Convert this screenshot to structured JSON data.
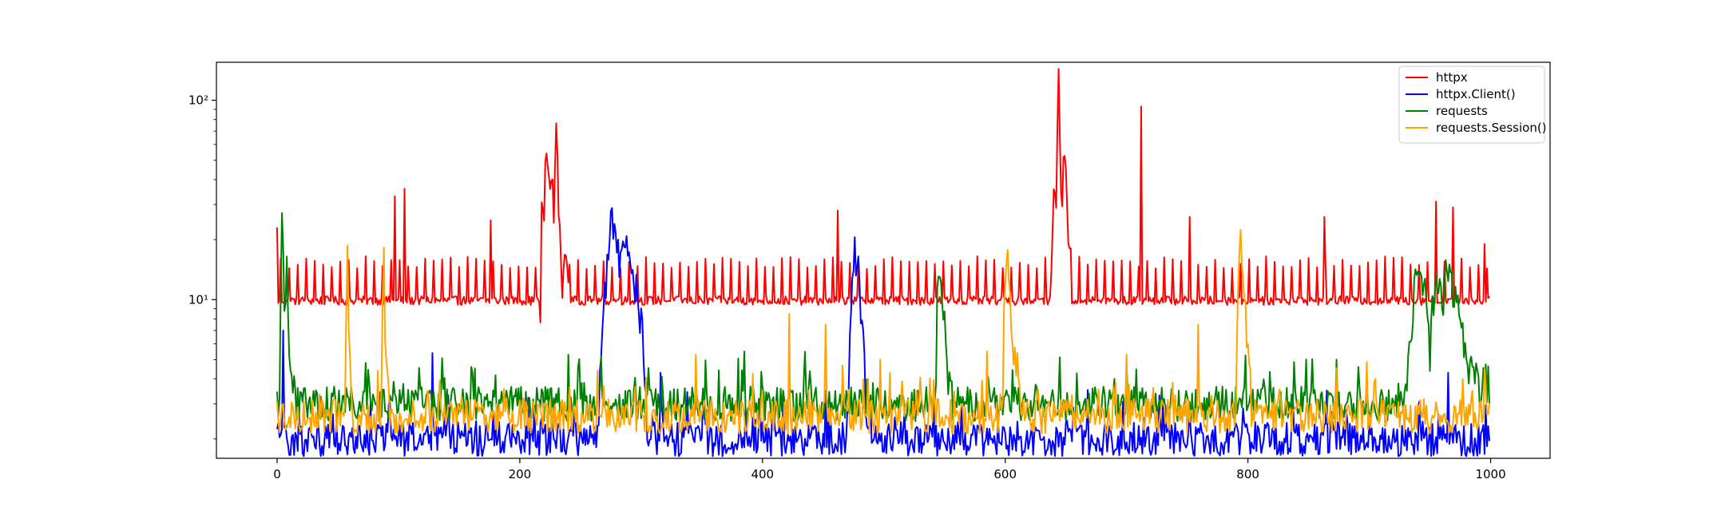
{
  "chart_data": {
    "type": "line",
    "title": "",
    "xlabel": "",
    "ylabel": "",
    "x_range": [
      0,
      999
    ],
    "xlim": [
      -50,
      1049
    ],
    "ylim": [
      1.6,
      155
    ],
    "y_scale": "log",
    "grid": false,
    "legend_position": "top-right",
    "x_ticks": [
      0,
      200,
      400,
      600,
      800,
      1000
    ],
    "x_tick_labels": [
      "0",
      "200",
      "400",
      "600",
      "800",
      "1000"
    ],
    "y_ticks": [
      10,
      100
    ],
    "y_tick_labels": [
      "10¹",
      "10²"
    ],
    "series": [
      {
        "name": "httpx",
        "color": "#ff0000",
        "baseline": 9.9,
        "spike_every": 7,
        "spike_height": 15,
        "bursts": [
          {
            "x": [
              217,
              218,
              220,
              222,
              224,
              226,
              228,
              230,
              232,
              234,
              236,
              238,
              240
            ],
            "y": [
              10,
              40,
              25,
              60,
              35,
              50,
              26,
              70,
              30,
              14,
              13,
              18,
              11
            ]
          },
          {
            "x": [
              638,
              640,
              642,
              644,
              646,
              648,
              650,
              652,
              654
            ],
            "y": [
              18,
              33,
              30,
              120,
              30,
              47,
              40,
              22,
              18
            ]
          }
        ],
        "peaks": [
          {
            "x": 0,
            "y": 23
          },
          {
            "x": 97,
            "y": 33
          },
          {
            "x": 105,
            "y": 36
          },
          {
            "x": 176,
            "y": 25
          },
          {
            "x": 462,
            "y": 28
          },
          {
            "x": 712,
            "y": 93
          },
          {
            "x": 752,
            "y": 26
          },
          {
            "x": 863,
            "y": 26
          },
          {
            "x": 955,
            "y": 31
          },
          {
            "x": 969,
            "y": 29
          },
          {
            "x": 995,
            "y": 19
          }
        ]
      },
      {
        "name": "httpx.Client()",
        "color": "#0000ff",
        "baseline": 2.0,
        "bursts": [
          {
            "x": [
              265,
              268,
              272,
              276,
              280,
              284,
              288,
              292,
              296,
              300,
              304
            ],
            "y": [
              3,
              6,
              14,
              29,
              18,
              16,
              17,
              13,
              12,
              8,
              3
            ]
          },
          {
            "x": [
              470,
              473,
              476,
              479,
              482,
              485
            ],
            "y": [
              3,
              8,
              17,
              16,
              7,
              3
            ]
          }
        ],
        "peaks": [
          {
            "x": 5,
            "y": 7
          },
          {
            "x": 128,
            "y": 5.4
          },
          {
            "x": 316,
            "y": 4.3
          },
          {
            "x": 865,
            "y": 3.5
          },
          {
            "x": 965,
            "y": 4.3
          }
        ]
      },
      {
        "name": "requests",
        "color": "#008000",
        "baseline": 3.0,
        "bursts": [
          {
            "x": [
              2,
              4,
              6,
              8,
              10,
              12,
              14
            ],
            "y": [
              4,
              22,
              9,
              14,
              6,
              4,
              3.5
            ]
          },
          {
            "x": [
              543,
              545,
              547,
              549,
              551,
              553,
              556
            ],
            "y": [
              3.5,
              16,
              10,
              8,
              6,
              4,
              3.2
            ]
          },
          {
            "x": [
              930,
              935,
              940,
              945,
              950,
              955,
              960,
              965,
              970,
              975,
              980,
              985,
              990,
              999
            ],
            "y": [
              3.5,
              8,
              17,
              12,
              5,
              15,
              9,
              16,
              10,
              8,
              5,
              4,
              3.8,
              3.8
            ]
          }
        ],
        "peaks": [
          {
            "x": 160,
            "y": 4.6
          },
          {
            "x": 385,
            "y": 5.5
          },
          {
            "x": 700,
            "y": 4.8
          },
          {
            "x": 873,
            "y": 5.0
          }
        ]
      },
      {
        "name": "requests.Session()",
        "color": "#ffa500",
        "baseline": 2.6,
        "bursts": [
          {
            "x": [
              56,
              57,
              58,
              59,
              60,
              61,
              62
            ],
            "y": [
              3,
              10,
              16,
              7,
              5,
              3.5,
              3
            ]
          },
          {
            "x": [
              86,
              87,
              88,
              89,
              90,
              91,
              92
            ],
            "y": [
              3,
              11,
              17,
              8,
              5,
              3.5,
              3
            ]
          },
          {
            "x": [
              598,
              600,
              601,
              603,
              605,
              607,
              609,
              612
            ],
            "y": [
              3,
              12,
              20,
              14,
              7,
              5,
              5.2,
              3
            ]
          },
          {
            "x": [
              790,
              792,
              794,
              796,
              798,
              800,
              803
            ],
            "y": [
              3,
              12,
              18,
              11,
              8,
              5,
              3
            ]
          }
        ],
        "peaks": [
          {
            "x": 345,
            "y": 5.3
          },
          {
            "x": 422,
            "y": 8.5
          },
          {
            "x": 452,
            "y": 7.5
          },
          {
            "x": 497,
            "y": 5.0
          },
          {
            "x": 585,
            "y": 5.5
          },
          {
            "x": 700,
            "y": 5.3
          },
          {
            "x": 759,
            "y": 7.5
          },
          {
            "x": 905,
            "y": 4.0
          },
          {
            "x": 995,
            "y": 4.5
          }
        ]
      }
    ]
  }
}
